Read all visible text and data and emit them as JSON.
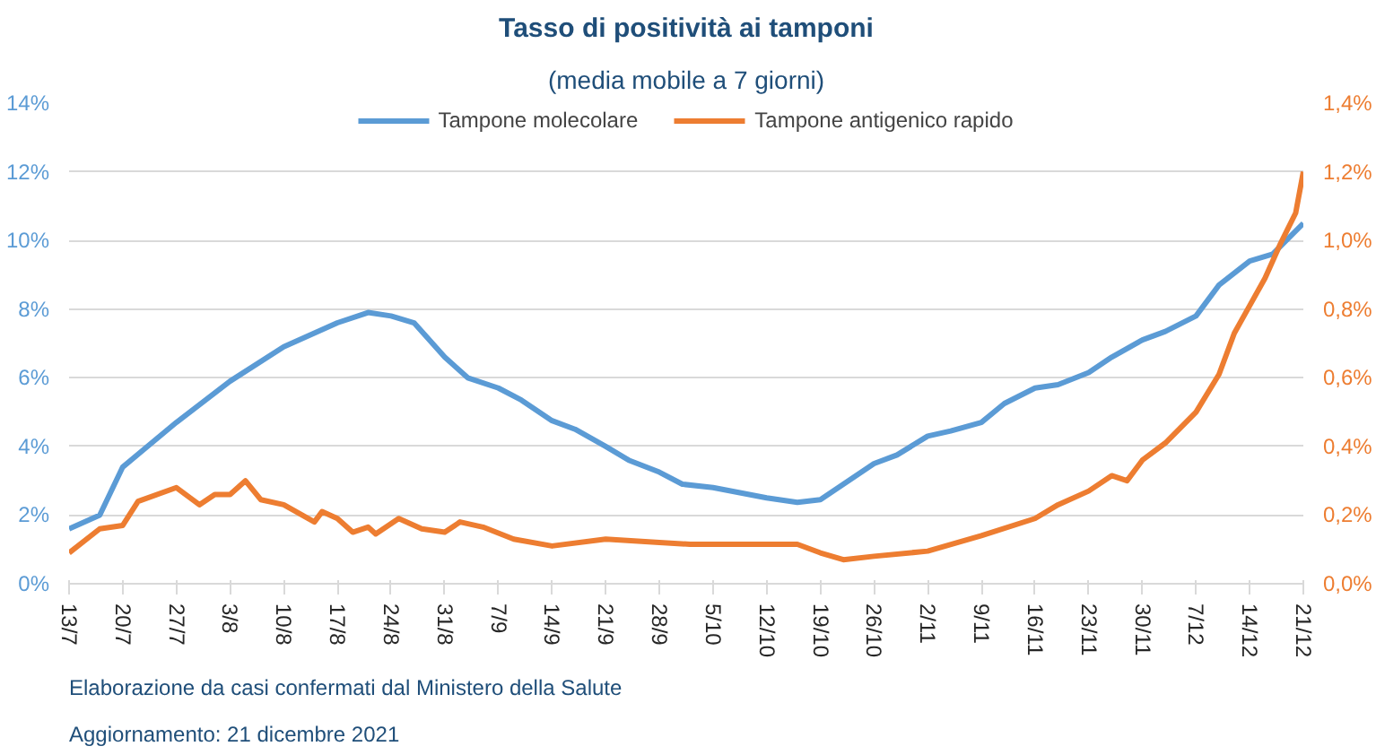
{
  "chart_data": {
    "type": "line",
    "title": "Tasso di positività ai tamponi",
    "subtitle": "(media mobile a 7 giorni)",
    "xlim": [
      "2021-07-13",
      "2021-12-21"
    ],
    "xticks": [
      {
        "value": "2021-07-13",
        "label": "13/7"
      },
      {
        "value": "2021-07-20",
        "label": "20/7"
      },
      {
        "value": "2021-07-27",
        "label": "27/7"
      },
      {
        "value": "2021-08-03",
        "label": "3/8"
      },
      {
        "value": "2021-08-10",
        "label": "10/8"
      },
      {
        "value": "2021-08-17",
        "label": "17/8"
      },
      {
        "value": "2021-08-24",
        "label": "24/8"
      },
      {
        "value": "2021-08-31",
        "label": "31/8"
      },
      {
        "value": "2021-09-07",
        "label": "7/9"
      },
      {
        "value": "2021-09-14",
        "label": "14/9"
      },
      {
        "value": "2021-09-21",
        "label": "21/9"
      },
      {
        "value": "2021-09-28",
        "label": "28/9"
      },
      {
        "value": "2021-10-05",
        "label": "5/10"
      },
      {
        "value": "2021-10-12",
        "label": "12/10"
      },
      {
        "value": "2021-10-19",
        "label": "19/10"
      },
      {
        "value": "2021-10-26",
        "label": "26/10"
      },
      {
        "value": "2021-11-02",
        "label": "2/11"
      },
      {
        "value": "2021-11-09",
        "label": "9/11"
      },
      {
        "value": "2021-11-16",
        "label": "16/11"
      },
      {
        "value": "2021-11-23",
        "label": "23/11"
      },
      {
        "value": "2021-11-30",
        "label": "30/11"
      },
      {
        "value": "2021-12-07",
        "label": "7/12"
      },
      {
        "value": "2021-12-14",
        "label": "14/12"
      },
      {
        "value": "2021-12-21",
        "label": "21/12"
      }
    ],
    "ylim": [
      0,
      14
    ],
    "yticks": [
      {
        "value": 0,
        "label": "0%"
      },
      {
        "value": 2,
        "label": "2%"
      },
      {
        "value": 4,
        "label": "4%"
      },
      {
        "value": 6,
        "label": "6%"
      },
      {
        "value": 8,
        "label": "8%"
      },
      {
        "value": 10,
        "label": "10%"
      },
      {
        "value": 12,
        "label": "12%"
      },
      {
        "value": 14,
        "label": "14%"
      }
    ],
    "y2lim": [
      0,
      1.4
    ],
    "y2ticks": [
      {
        "value": 0,
        "label": "0,0%"
      },
      {
        "value": 0.2,
        "label": "0,2%"
      },
      {
        "value": 0.4,
        "label": "0,4%"
      },
      {
        "value": 0.6,
        "label": "0,6%"
      },
      {
        "value": 0.8,
        "label": "0,8%"
      },
      {
        "value": 1.0,
        "label": "1,0%"
      },
      {
        "value": 1.2,
        "label": "1,2%"
      },
      {
        "value": 1.4,
        "label": "1,4%"
      }
    ],
    "grid": "y",
    "legend": "top",
    "marker": "none",
    "line_style": "solid",
    "series": [
      {
        "name": "Tampone molecolare",
        "color": "#5b9bd5",
        "x": [
          "2021-07-13",
          "2021-07-17",
          "2021-07-20",
          "2021-07-27",
          "2021-08-03",
          "2021-08-10",
          "2021-08-17",
          "2021-08-21",
          "2021-08-24",
          "2021-08-27",
          "2021-08-31",
          "2021-09-03",
          "2021-09-07",
          "2021-09-10",
          "2021-09-14",
          "2021-09-17",
          "2021-09-21",
          "2021-09-24",
          "2021-09-28",
          "2021-10-01",
          "2021-10-05",
          "2021-10-12",
          "2021-10-16",
          "2021-10-19",
          "2021-10-22",
          "2021-10-26",
          "2021-10-29",
          "2021-11-02",
          "2021-11-05",
          "2021-11-09",
          "2021-11-12",
          "2021-11-16",
          "2021-11-19",
          "2021-11-23",
          "2021-11-26",
          "2021-11-30",
          "2021-12-03",
          "2021-12-07",
          "2021-12-10",
          "2021-12-14",
          "2021-12-17",
          "2021-12-21"
        ],
        "values": [
          1.6,
          2.0,
          3.4,
          4.7,
          5.9,
          6.9,
          7.6,
          7.9,
          7.8,
          7.6,
          6.6,
          6.0,
          5.7,
          5.35,
          4.75,
          4.5,
          4.0,
          3.6,
          3.25,
          2.9,
          2.8,
          2.5,
          2.37,
          2.45,
          2.9,
          3.5,
          3.75,
          4.3,
          4.45,
          4.7,
          5.25,
          5.7,
          5.8,
          6.15,
          6.6,
          7.1,
          7.35,
          7.8,
          8.7,
          9.4,
          9.6,
          10.5
        ]
      },
      {
        "name": "Tampone antigenico rapido",
        "color": "#ed7d31",
        "axis": "y2",
        "x": [
          "2021-07-13",
          "2021-07-17",
          "2021-07-20",
          "2021-07-22",
          "2021-07-27",
          "2021-07-30",
          "2021-08-01",
          "2021-08-03",
          "2021-08-05",
          "2021-08-07",
          "2021-08-10",
          "2021-08-14",
          "2021-08-15",
          "2021-08-17",
          "2021-08-19",
          "2021-08-21",
          "2021-08-22",
          "2021-08-25",
          "2021-08-28",
          "2021-08-31",
          "2021-09-02",
          "2021-09-05",
          "2021-09-09",
          "2021-09-14",
          "2021-09-21",
          "2021-09-28",
          "2021-10-02",
          "2021-10-05",
          "2021-10-12",
          "2021-10-16",
          "2021-10-19",
          "2021-10-22",
          "2021-10-26",
          "2021-11-02",
          "2021-11-09",
          "2021-11-16",
          "2021-11-19",
          "2021-11-23",
          "2021-11-26",
          "2021-11-28",
          "2021-11-30",
          "2021-12-03",
          "2021-12-07",
          "2021-12-10",
          "2021-12-12",
          "2021-12-14",
          "2021-12-16",
          "2021-12-18",
          "2021-12-20",
          "2021-12-21"
        ],
        "values": [
          0.09,
          0.16,
          0.17,
          0.24,
          0.28,
          0.23,
          0.26,
          0.26,
          0.3,
          0.245,
          0.23,
          0.18,
          0.21,
          0.19,
          0.15,
          0.165,
          0.145,
          0.19,
          0.16,
          0.15,
          0.18,
          0.165,
          0.13,
          0.11,
          0.13,
          0.12,
          0.115,
          0.115,
          0.115,
          0.115,
          0.09,
          0.07,
          0.08,
          0.095,
          0.14,
          0.19,
          0.23,
          0.27,
          0.315,
          0.3,
          0.36,
          0.41,
          0.5,
          0.61,
          0.73,
          0.81,
          0.89,
          0.99,
          1.08,
          1.2
        ]
      }
    ],
    "annotations": [
      "Elaborazione da casi confermati dal Ministero della Salute",
      "Aggiornamento: 21 dicembre 2021"
    ]
  }
}
